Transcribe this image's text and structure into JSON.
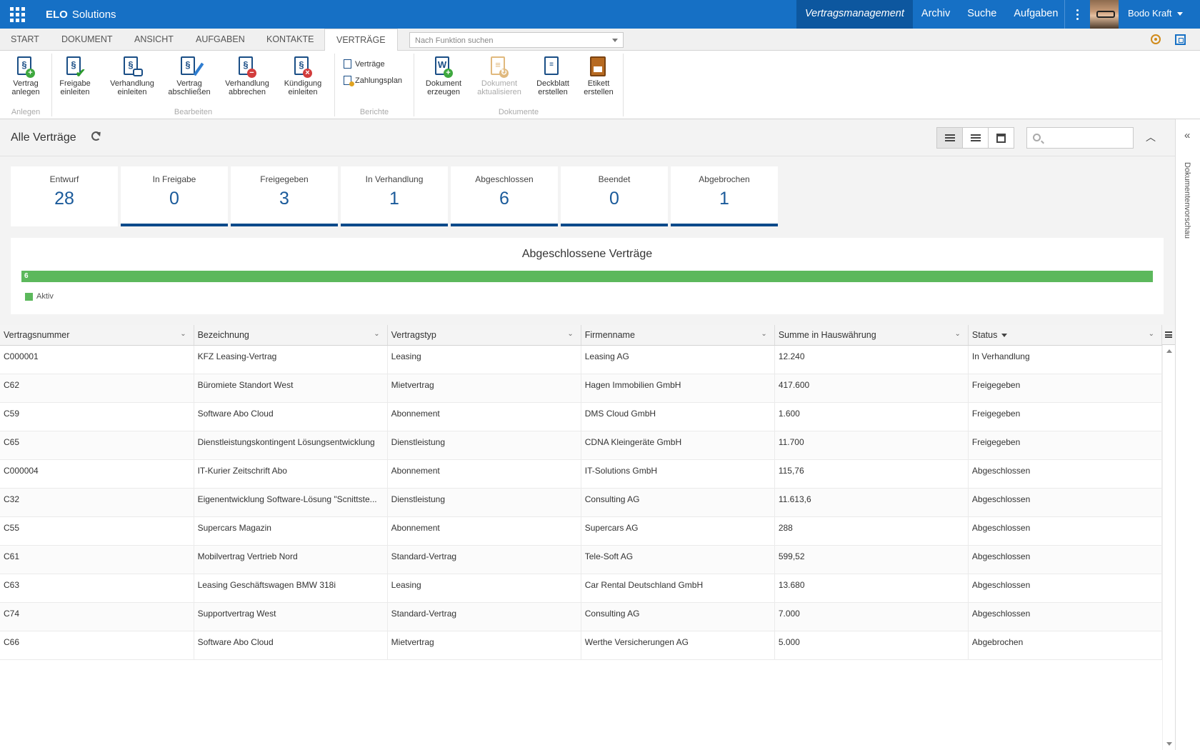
{
  "app": {
    "brand_bold": "ELO",
    "brand_rest": "Solutions",
    "nav": [
      "Vertragsmanagement",
      "Archiv",
      "Suche",
      "Aufgaben"
    ],
    "user": "Bodo Kraft"
  },
  "ribbon_tabs": [
    "START",
    "DOKUMENT",
    "ANSICHT",
    "AUFGABEN",
    "KONTAKTE",
    "VERTRÄGE"
  ],
  "function_search_placeholder": "Nach Funktion suchen",
  "ribbon": {
    "anlegen": {
      "label": "Anlegen",
      "btn": [
        "Vertrag",
        "anlegen"
      ]
    },
    "bearbeiten": {
      "label": "Bearbeiten",
      "btns": [
        [
          "Freigabe",
          "einleiten"
        ],
        [
          "Verhandlung",
          "einleiten"
        ],
        [
          "Vertrag",
          "abschließen"
        ],
        [
          "Verhandlung",
          "abbrechen"
        ],
        [
          "Kündigung",
          "einleiten"
        ]
      ]
    },
    "berichte": {
      "label": "Berichte",
      "links": [
        "Verträge",
        "Zahlungsplan"
      ]
    },
    "dokumente": {
      "label": "Dokumente",
      "btns": [
        [
          "Dokument",
          "erzeugen"
        ],
        [
          "Dokument",
          "aktualisieren"
        ],
        [
          "Deckblatt",
          "erstellen"
        ],
        [
          "Etikett",
          "erstellen"
        ]
      ]
    }
  },
  "page_title": "Alle Verträge",
  "side_panel_label": "Dokumentenvorschau",
  "status_cards": [
    {
      "label": "Entwurf",
      "count": "28"
    },
    {
      "label": "In Freigabe",
      "count": "0"
    },
    {
      "label": "Freigegeben",
      "count": "3"
    },
    {
      "label": "In Verhandlung",
      "count": "1"
    },
    {
      "label": "Abgeschlossen",
      "count": "6"
    },
    {
      "label": "Beendet",
      "count": "0"
    },
    {
      "label": "Abgebrochen",
      "count": "1"
    }
  ],
  "summary": {
    "title": "Abgeschlossene Verträge",
    "bar_value": "6",
    "legend": "Aktiv",
    "color": "#5cb85c"
  },
  "table": {
    "columns": [
      "Vertragsnummer",
      "Bezeichnung",
      "Vertragstyp",
      "Firmenname",
      "Summe in Hauswährung",
      "Status"
    ],
    "rows": [
      [
        "C000001",
        "KFZ Leasing-Vertrag",
        "Leasing",
        "Leasing AG",
        "12.240",
        "In Verhandlung"
      ],
      [
        "C62",
        "Büromiete Standort West",
        "Mietvertrag",
        "Hagen Immobilien GmbH",
        "417.600",
        "Freigegeben"
      ],
      [
        "C59",
        "Software Abo Cloud",
        "Abonnement",
        "DMS Cloud GmbH",
        "1.600",
        "Freigegeben"
      ],
      [
        "C65",
        "Dienstleistungskontingent Lösungsentwicklung",
        "Dienstleistung",
        "CDNA Kleingeräte GmbH",
        "11.700",
        "Freigegeben"
      ],
      [
        "C000004",
        "IT-Kurier Zeitschrift Abo",
        "Abonnement",
        "IT-Solutions GmbH",
        "115,76",
        "Abgeschlossen"
      ],
      [
        "C32",
        "Eigenentwicklung Software-Lösung \"Scnittste...",
        "Dienstleistung",
        "Consulting AG",
        "11.613,6",
        "Abgeschlossen"
      ],
      [
        "C55",
        "Supercars Magazin",
        "Abonnement",
        "Supercars AG",
        "288",
        "Abgeschlossen"
      ],
      [
        "C61",
        "Mobilvertrag Vertrieb Nord",
        "Standard-Vertrag",
        "Tele-Soft AG",
        "599,52",
        "Abgeschlossen"
      ],
      [
        "C63",
        "Leasing Geschäftswagen BMW 318i",
        "Leasing",
        "Car Rental Deutschland GmbH",
        "13.680",
        "Abgeschlossen"
      ],
      [
        "C74",
        "Supportvertrag West",
        "Standard-Vertrag",
        "Consulting AG",
        "7.000",
        "Abgeschlossen"
      ],
      [
        "C66",
        "Software Abo Cloud",
        "Mietvertrag",
        "Werthe Versicherungen AG",
        "5.000",
        "Abgebrochen"
      ]
    ]
  }
}
